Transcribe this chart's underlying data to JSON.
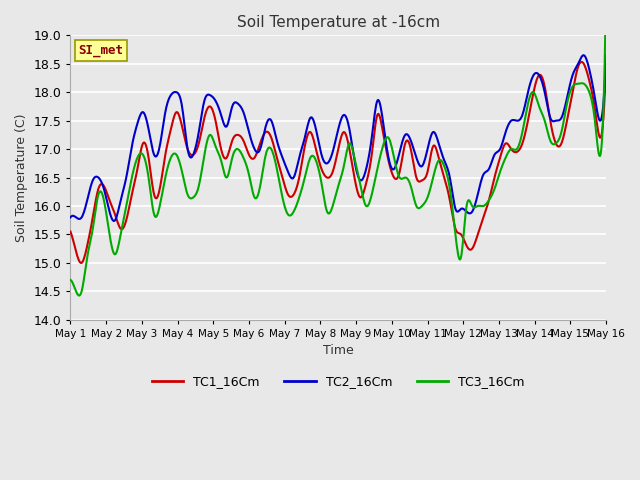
{
  "title": "Soil Temperature at -16cm",
  "xlabel": "Time",
  "ylabel": "Soil Temperature (C)",
  "ylim": [
    14.0,
    19.0
  ],
  "yticks": [
    14.0,
    14.5,
    15.0,
    15.5,
    16.0,
    16.5,
    17.0,
    17.5,
    18.0,
    18.5,
    19.0
  ],
  "xlabels": [
    "May 1",
    "May 2",
    "May 3",
    "May 4",
    "May 5",
    "May 6",
    "May 7",
    "May 8",
    "May 9",
    "May 10",
    "May 11",
    "May 12",
    "May 13",
    "May 14",
    "May 15",
    "May 16"
  ],
  "background_color": "#e8e8e8",
  "fig_background": "#e8e8e8",
  "grid_color": "#ffffff",
  "tc1_color": "#cc0000",
  "tc2_color": "#0000cc",
  "tc3_color": "#00aa00",
  "legend_box_color": "#ffff99",
  "legend_box_edge": "#999900",
  "legend_label": "SI_met",
  "tc1_label": "TC1_16Cm",
  "tc2_label": "TC2_16Cm",
  "tc3_label": "TC3_16Cm",
  "tc1_data": [
    15.55,
    15.2,
    15.0,
    15.3,
    15.8,
    16.3,
    16.35,
    16.1,
    15.85,
    15.6,
    15.75,
    16.2,
    16.65,
    17.1,
    16.85,
    16.2,
    16.3,
    16.9,
    17.35,
    17.65,
    17.4,
    17.0,
    16.9,
    17.1,
    17.55,
    17.75,
    17.5,
    17.0,
    16.85,
    17.15,
    17.25,
    17.15,
    16.9,
    16.85,
    17.1,
    17.3,
    17.2,
    16.85,
    16.5,
    16.2,
    16.2,
    16.5,
    17.05,
    17.3,
    17.0,
    16.65,
    16.5,
    16.6,
    17.0,
    17.3,
    17.0,
    16.45,
    16.15,
    16.4,
    16.9,
    17.6,
    17.3,
    16.8,
    16.5,
    16.6,
    17.1,
    17.0,
    16.5,
    16.45,
    16.6,
    17.05,
    16.85,
    16.5,
    16.1,
    15.6,
    15.5,
    15.3,
    15.25,
    15.5,
    15.8,
    16.1,
    16.5,
    16.85,
    17.1,
    17.0,
    16.95,
    17.1,
    17.5,
    18.0,
    18.3,
    18.1,
    17.5,
    17.1,
    17.1,
    17.5,
    18.0,
    18.45,
    18.5,
    18.2,
    17.7,
    17.2,
    18.6
  ],
  "tc2_data": [
    15.8,
    15.8,
    15.8,
    16.1,
    16.45,
    16.5,
    16.3,
    15.9,
    15.75,
    16.1,
    16.5,
    17.05,
    17.45,
    17.65,
    17.35,
    16.9,
    17.05,
    17.65,
    17.95,
    18.0,
    17.75,
    17.0,
    16.9,
    17.3,
    17.85,
    17.95,
    17.85,
    17.6,
    17.4,
    17.75,
    17.8,
    17.65,
    17.3,
    17.0,
    17.0,
    17.4,
    17.5,
    17.15,
    16.85,
    16.6,
    16.5,
    16.85,
    17.2,
    17.55,
    17.35,
    16.9,
    16.75,
    16.95,
    17.35,
    17.6,
    17.35,
    16.75,
    16.45,
    16.65,
    17.2,
    17.85,
    17.5,
    16.85,
    16.65,
    16.95,
    17.25,
    17.15,
    16.85,
    16.7,
    17.0,
    17.3,
    17.1,
    16.8,
    16.5,
    15.95,
    15.95,
    15.9,
    15.9,
    16.2,
    16.55,
    16.65,
    16.9,
    17.0,
    17.3,
    17.5,
    17.5,
    17.6,
    18.0,
    18.3,
    18.3,
    18.0,
    17.55,
    17.5,
    17.55,
    17.9,
    18.3,
    18.5,
    18.65,
    18.4,
    17.9,
    17.5,
    18.65
  ],
  "tc3_data": [
    14.7,
    14.5,
    14.5,
    15.1,
    15.6,
    16.2,
    16.1,
    15.5,
    15.15,
    15.5,
    16.0,
    16.5,
    16.85,
    16.9,
    16.5,
    15.85,
    16.0,
    16.5,
    16.85,
    16.9,
    16.6,
    16.2,
    16.15,
    16.35,
    16.9,
    17.25,
    17.05,
    16.8,
    16.5,
    16.85,
    17.0,
    16.85,
    16.55,
    16.15,
    16.35,
    16.9,
    17.0,
    16.65,
    16.15,
    15.85,
    15.9,
    16.15,
    16.5,
    16.85,
    16.8,
    16.4,
    15.9,
    16.0,
    16.35,
    16.7,
    17.1,
    16.8,
    16.35,
    16.0,
    16.2,
    16.65,
    17.05,
    17.2,
    16.85,
    16.5,
    16.5,
    16.35,
    16.0,
    16.0,
    16.15,
    16.5,
    16.8,
    16.7,
    16.3,
    15.5,
    15.1,
    16.0,
    16.0,
    16.0,
    16.0,
    16.1,
    16.3,
    16.6,
    16.85,
    17.0,
    17.0,
    17.3,
    17.8,
    18.0,
    17.75,
    17.5,
    17.15,
    17.1,
    17.3,
    17.8,
    18.1,
    18.15,
    18.15,
    18.0,
    17.5,
    16.9,
    19.8
  ]
}
